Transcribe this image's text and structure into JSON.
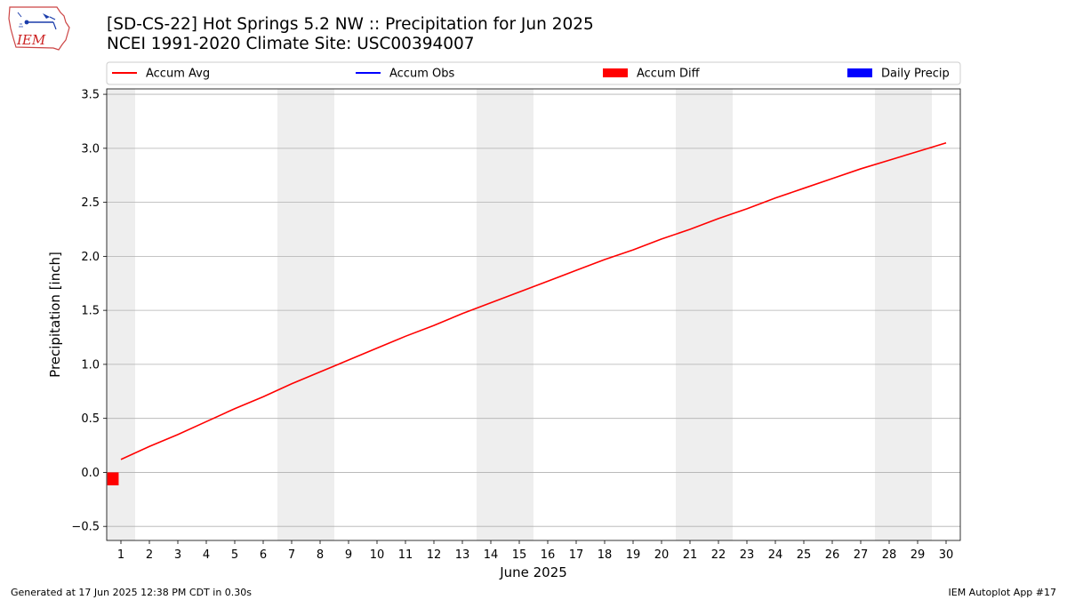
{
  "header": {
    "title": "[SD-CS-22] Hot Springs 5.2 NW :: Precipitation for Jun 2025",
    "subtitle": "NCEI 1991-2020 Climate Site: USC00394007",
    "logo_text": "IEM"
  },
  "footer": {
    "generated": "Generated at 17 Jun 2025 12:38 PM CDT in 0.30s",
    "app": "IEM Autoplot App #17"
  },
  "colors": {
    "accum_avg": "#ff0000",
    "accum_obs": "#0000ff",
    "accum_diff": "#ff0000",
    "daily_precip": "#0000ff",
    "weekend_shade": "#eeeeee",
    "grid": "#b0b0b0"
  },
  "chart_data": {
    "type": "line",
    "title": "[SD-CS-22] Hot Springs 5.2 NW :: Precipitation for Jun 2025",
    "xlabel": "June 2025",
    "ylabel": "Precipitation [inch]",
    "xlim": [
      0.5,
      30.5
    ],
    "ylim": [
      -0.63,
      3.55
    ],
    "grid": "horizontal",
    "legend_position": "top",
    "legend": [
      {
        "label": "Accum Avg",
        "kind": "line",
        "color": "#ff0000"
      },
      {
        "label": "Accum Obs",
        "kind": "line",
        "color": "#0000ff"
      },
      {
        "label": "Accum Diff",
        "kind": "bar",
        "color": "#ff0000"
      },
      {
        "label": "Daily Precip",
        "kind": "bar",
        "color": "#0000ff"
      }
    ],
    "x_ticks": [
      1,
      2,
      3,
      4,
      5,
      6,
      7,
      8,
      9,
      10,
      11,
      12,
      13,
      14,
      15,
      16,
      17,
      18,
      19,
      20,
      21,
      22,
      23,
      24,
      25,
      26,
      27,
      28,
      29,
      30
    ],
    "y_ticks": [
      -0.5,
      0.0,
      0.5,
      1.0,
      1.5,
      2.0,
      2.5,
      3.0,
      3.5
    ],
    "y_tick_labels": [
      "−0.5",
      "0.0",
      "0.5",
      "1.0",
      "1.5",
      "2.0",
      "2.5",
      "3.0",
      "3.5"
    ],
    "weekend_days": [
      1,
      7,
      8,
      14,
      15,
      21,
      22,
      28,
      29
    ],
    "series": [
      {
        "name": "Accum Avg",
        "type": "line",
        "x": [
          1,
          2,
          3,
          4,
          5,
          6,
          7,
          8,
          9,
          10,
          11,
          12,
          13,
          14,
          15,
          16,
          17,
          18,
          19,
          20,
          21,
          22,
          23,
          24,
          25,
          26,
          27,
          28,
          29,
          30
        ],
        "values": [
          0.12,
          0.24,
          0.35,
          0.47,
          0.59,
          0.7,
          0.82,
          0.93,
          1.04,
          1.15,
          1.26,
          1.36,
          1.47,
          1.57,
          1.67,
          1.77,
          1.87,
          1.97,
          2.06,
          2.16,
          2.25,
          2.35,
          2.44,
          2.54,
          2.63,
          2.72,
          2.81,
          2.89,
          2.97,
          3.05
        ]
      },
      {
        "name": "Accum Diff",
        "type": "bar",
        "x": [
          1
        ],
        "values": [
          -0.12
        ]
      }
    ]
  }
}
